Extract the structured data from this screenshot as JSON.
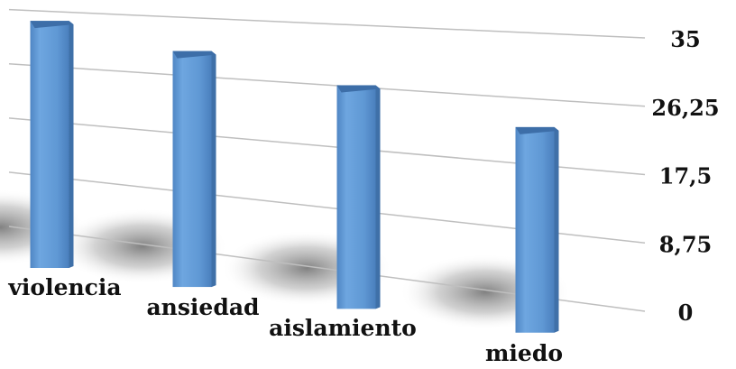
{
  "chart_data": {
    "type": "bar",
    "categories": [
      "violencia",
      "ansiedad",
      "aislamiento",
      "miedo"
    ],
    "values": [
      33.5,
      30,
      26.5,
      22.5
    ],
    "ylim": [
      0,
      35
    ],
    "yticks": [
      "0",
      "8,75",
      "17,5",
      "26,25",
      "35"
    ],
    "title": "",
    "xlabel": "",
    "ylabel": "",
    "grid": true,
    "legend": "none",
    "colors": {
      "bar": "#5f98d4",
      "bar_top": "#3d6ea8",
      "bar_side": "#3f70a8",
      "grid": "#bfbfbf"
    }
  }
}
